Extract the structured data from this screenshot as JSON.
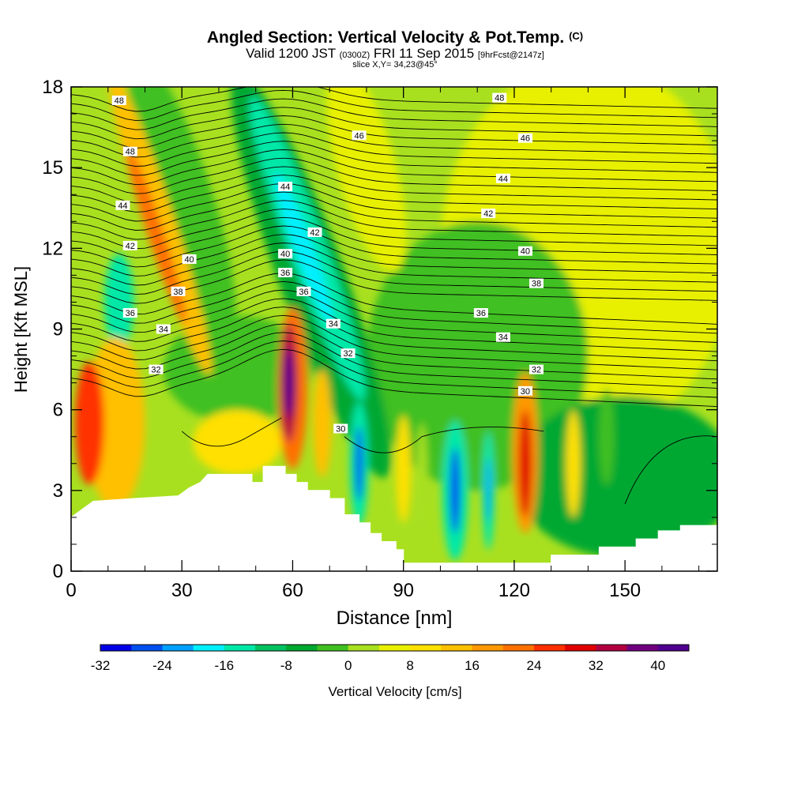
{
  "header": {
    "title_main": "Angled Section: Vertical Velocity & Pot.Temp.",
    "title_unit": "(C)",
    "valid_a": "Valid 1200 JST",
    "valid_z": "(0300Z)",
    "valid_b": "FRI 11 Sep 2015",
    "fcst": "[9hrFcst@2147z]",
    "slice": "slice X,Y= 34,23@45°"
  },
  "chart_data": {
    "type": "heatmap",
    "xlabel": "Distance [nm]",
    "ylabel": "Height [Kft MSL]",
    "xlim": [
      0,
      175
    ],
    "ylim": [
      0,
      18
    ],
    "xticks": [
      0,
      30,
      60,
      90,
      120,
      150
    ],
    "yticks": [
      0,
      3,
      6,
      9,
      12,
      15,
      18
    ],
    "fill_variable": "Vertical Velocity [cm/s]",
    "colorbar": {
      "label": "Vertical Velocity [cm/s]",
      "tick_labels": [
        "-32",
        "-24",
        "-16",
        "-8",
        "0",
        "8",
        "16",
        "24",
        "32",
        "40"
      ],
      "tick_values": [
        -32,
        -24,
        -16,
        -8,
        0,
        8,
        16,
        24,
        32,
        40
      ],
      "range": [
        -32,
        44
      ],
      "interval": 4,
      "colors": [
        "#0000e8",
        "#0050f0",
        "#00a0ff",
        "#00f0ff",
        "#00e8a8",
        "#00c060",
        "#00a830",
        "#40c020",
        "#a8e020",
        "#e8f000",
        "#ffe000",
        "#ffc000",
        "#ff9800",
        "#ff7000",
        "#ff3000",
        "#e00000",
        "#b00040",
        "#700080",
        "#500090"
      ]
    },
    "contour_variable": "Pot.Temp.",
    "contour_labels": [
      {
        "text": "48",
        "x": 13,
        "y": 17.5
      },
      {
        "text": "48",
        "x": 16,
        "y": 15.6
      },
      {
        "text": "44",
        "x": 14,
        "y": 13.6
      },
      {
        "text": "42",
        "x": 16,
        "y": 12.1
      },
      {
        "text": "40",
        "x": 32,
        "y": 11.6
      },
      {
        "text": "38",
        "x": 29,
        "y": 10.4
      },
      {
        "text": "36",
        "x": 16,
        "y": 9.6
      },
      {
        "text": "34",
        "x": 25,
        "y": 9.0
      },
      {
        "text": "32",
        "x": 23,
        "y": 7.5
      },
      {
        "text": "46",
        "x": 78,
        "y": 16.2
      },
      {
        "text": "44",
        "x": 58,
        "y": 14.3
      },
      {
        "text": "42",
        "x": 66,
        "y": 12.6
      },
      {
        "text": "40",
        "x": 58,
        "y": 11.8
      },
      {
        "text": "36",
        "x": 58,
        "y": 11.1
      },
      {
        "text": "36",
        "x": 63,
        "y": 10.4
      },
      {
        "text": "34",
        "x": 71,
        "y": 9.2
      },
      {
        "text": "32",
        "x": 75,
        "y": 8.1
      },
      {
        "text": "30",
        "x": 73,
        "y": 5.3
      },
      {
        "text": "48",
        "x": 116,
        "y": 17.6
      },
      {
        "text": "46",
        "x": 123,
        "y": 16.1
      },
      {
        "text": "44",
        "x": 117,
        "y": 14.6
      },
      {
        "text": "42",
        "x": 113,
        "y": 13.3
      },
      {
        "text": "40",
        "x": 123,
        "y": 11.9
      },
      {
        "text": "38",
        "x": 126,
        "y": 10.7
      },
      {
        "text": "36",
        "x": 111,
        "y": 9.6
      },
      {
        "text": "34",
        "x": 117,
        "y": 8.7
      },
      {
        "text": "32",
        "x": 126,
        "y": 7.5
      },
      {
        "text": "30",
        "x": 123,
        "y": 6.7
      }
    ]
  }
}
